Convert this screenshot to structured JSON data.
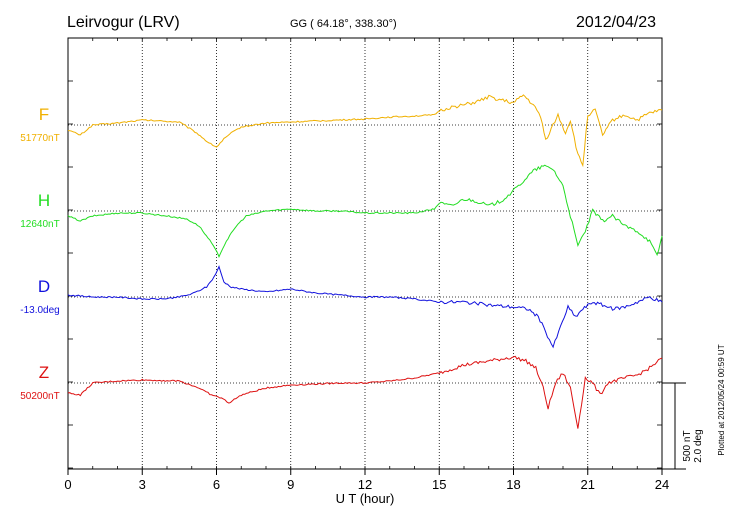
{
  "header": {
    "station": "Leirvogur (LRV)",
    "coords": "GG ( 64.18°, 338.30°)",
    "date": "2012/04/23"
  },
  "footer": {
    "plotted": "Plotted at 2012/05/24 00:59 UT"
  },
  "scale_bar": {
    "line1": "500 nT",
    "line2": "2.0 deg"
  },
  "chart_data": {
    "type": "line",
    "xlabel": "U T (hour)",
    "xlim": [
      0,
      24
    ],
    "xticks": [
      0,
      3,
      6,
      9,
      12,
      15,
      18,
      21,
      24
    ],
    "grid": true,
    "series": [
      {
        "name": "F",
        "baseline_label": "51770nT",
        "color": "#f0b000",
        "points": [
          [
            0,
            -5
          ],
          [
            0.5,
            -10
          ],
          [
            1,
            0
          ],
          [
            2,
            2
          ],
          [
            3,
            5
          ],
          [
            4.5,
            3
          ],
          [
            5.2,
            -8
          ],
          [
            5.7,
            -18
          ],
          [
            6.0,
            -22
          ],
          [
            6.3,
            -14
          ],
          [
            6.6,
            -8
          ],
          [
            7,
            -2
          ],
          [
            8,
            2
          ],
          [
            9,
            3
          ],
          [
            10,
            4
          ],
          [
            11,
            5
          ],
          [
            12,
            6
          ],
          [
            13,
            8
          ],
          [
            14,
            9
          ],
          [
            14.8,
            10
          ],
          [
            15,
            14
          ],
          [
            15.5,
            18
          ],
          [
            16,
            20
          ],
          [
            16.5,
            23
          ],
          [
            17,
            28
          ],
          [
            17.5,
            25
          ],
          [
            18,
            22
          ],
          [
            18.4,
            30
          ],
          [
            18.8,
            20
          ],
          [
            19.1,
            8
          ],
          [
            19.3,
            -15
          ],
          [
            19.6,
            0
          ],
          [
            19.8,
            10
          ],
          [
            20.1,
            -8
          ],
          [
            20.3,
            5
          ],
          [
            20.6,
            -30
          ],
          [
            20.8,
            -40
          ],
          [
            21,
            10
          ],
          [
            21.3,
            15
          ],
          [
            21.6,
            -10
          ],
          [
            22,
            5
          ],
          [
            22.5,
            10
          ],
          [
            23,
            5
          ],
          [
            23.5,
            12
          ],
          [
            24,
            15
          ]
        ]
      },
      {
        "name": "H",
        "baseline_label": "12640nT",
        "color": "#22dd22",
        "points": [
          [
            0,
            -5
          ],
          [
            0.5,
            -10
          ],
          [
            1,
            -5
          ],
          [
            2,
            -2
          ],
          [
            3,
            -2
          ],
          [
            4,
            -5
          ],
          [
            4.8,
            -8
          ],
          [
            5.3,
            -15
          ],
          [
            5.8,
            -32
          ],
          [
            6.1,
            -45
          ],
          [
            6.4,
            -30
          ],
          [
            6.8,
            -15
          ],
          [
            7.2,
            -5
          ],
          [
            8,
            0
          ],
          [
            9,
            2
          ],
          [
            10,
            0
          ],
          [
            11,
            0
          ],
          [
            12,
            -2
          ],
          [
            13,
            -2
          ],
          [
            14,
            -2
          ],
          [
            14.8,
            2
          ],
          [
            15,
            8
          ],
          [
            15.5,
            5
          ],
          [
            16,
            12
          ],
          [
            16.5,
            10
          ],
          [
            17,
            5
          ],
          [
            17.5,
            10
          ],
          [
            18,
            20
          ],
          [
            18.4,
            30
          ],
          [
            18.8,
            40
          ],
          [
            19.2,
            45
          ],
          [
            19.6,
            42
          ],
          [
            20,
            25
          ],
          [
            20.3,
            -5
          ],
          [
            20.6,
            -35
          ],
          [
            20.9,
            -20
          ],
          [
            21.2,
            0
          ],
          [
            21.6,
            -10
          ],
          [
            22,
            -5
          ],
          [
            22.5,
            -15
          ],
          [
            23,
            -20
          ],
          [
            23.5,
            -30
          ],
          [
            23.8,
            -45
          ],
          [
            24,
            -25
          ]
        ]
      },
      {
        "name": "D",
        "baseline_label": "-13.0deg",
        "color": "#1111dd",
        "points": [
          [
            0,
            2
          ],
          [
            1,
            0
          ],
          [
            2,
            0
          ],
          [
            3,
            -2
          ],
          [
            3.8,
            -2
          ],
          [
            4.5,
            0
          ],
          [
            5,
            3
          ],
          [
            5.6,
            10
          ],
          [
            5.9,
            20
          ],
          [
            6.1,
            30
          ],
          [
            6.3,
            15
          ],
          [
            6.6,
            10
          ],
          [
            7,
            8
          ],
          [
            8,
            5
          ],
          [
            9,
            8
          ],
          [
            10,
            4
          ],
          [
            11,
            2
          ],
          [
            12,
            0
          ],
          [
            13,
            0
          ],
          [
            14,
            -2
          ],
          [
            15,
            -5
          ],
          [
            16,
            -5
          ],
          [
            17,
            -8
          ],
          [
            18,
            -10
          ],
          [
            18.6,
            -12
          ],
          [
            19,
            -20
          ],
          [
            19.3,
            -35
          ],
          [
            19.6,
            -50
          ],
          [
            19.9,
            -30
          ],
          [
            20.2,
            -10
          ],
          [
            20.5,
            -20
          ],
          [
            20.8,
            -12
          ],
          [
            21.2,
            -5
          ],
          [
            21.6,
            -8
          ],
          [
            22,
            -12
          ],
          [
            22.5,
            -10
          ],
          [
            23,
            -5
          ],
          [
            23.5,
            0
          ],
          [
            24,
            -5
          ]
        ]
      },
      {
        "name": "Z",
        "baseline_label": "50200nT",
        "color": "#dd1111",
        "points": [
          [
            0,
            -10
          ],
          [
            0.5,
            -12
          ],
          [
            1,
            0
          ],
          [
            2,
            2
          ],
          [
            3,
            3
          ],
          [
            4.5,
            2
          ],
          [
            5.3,
            -5
          ],
          [
            5.8,
            -12
          ],
          [
            6.2,
            -15
          ],
          [
            6.5,
            -20
          ],
          [
            7,
            -12
          ],
          [
            8,
            -5
          ],
          [
            9,
            -2
          ],
          [
            10,
            -1
          ],
          [
            11,
            0
          ],
          [
            12,
            0
          ],
          [
            13,
            2
          ],
          [
            14,
            5
          ],
          [
            15,
            10
          ],
          [
            16,
            18
          ],
          [
            17,
            22
          ],
          [
            18,
            26
          ],
          [
            18.5,
            22
          ],
          [
            18.9,
            15
          ],
          [
            19.2,
            -5
          ],
          [
            19.4,
            -25
          ],
          [
            19.7,
            0
          ],
          [
            20,
            10
          ],
          [
            20.3,
            -5
          ],
          [
            20.6,
            -45
          ],
          [
            20.9,
            5
          ],
          [
            21.2,
            0
          ],
          [
            21.5,
            -12
          ],
          [
            21.8,
            0
          ],
          [
            22.5,
            5
          ],
          [
            23,
            8
          ],
          [
            23.5,
            15
          ],
          [
            24,
            25
          ]
        ]
      }
    ]
  }
}
